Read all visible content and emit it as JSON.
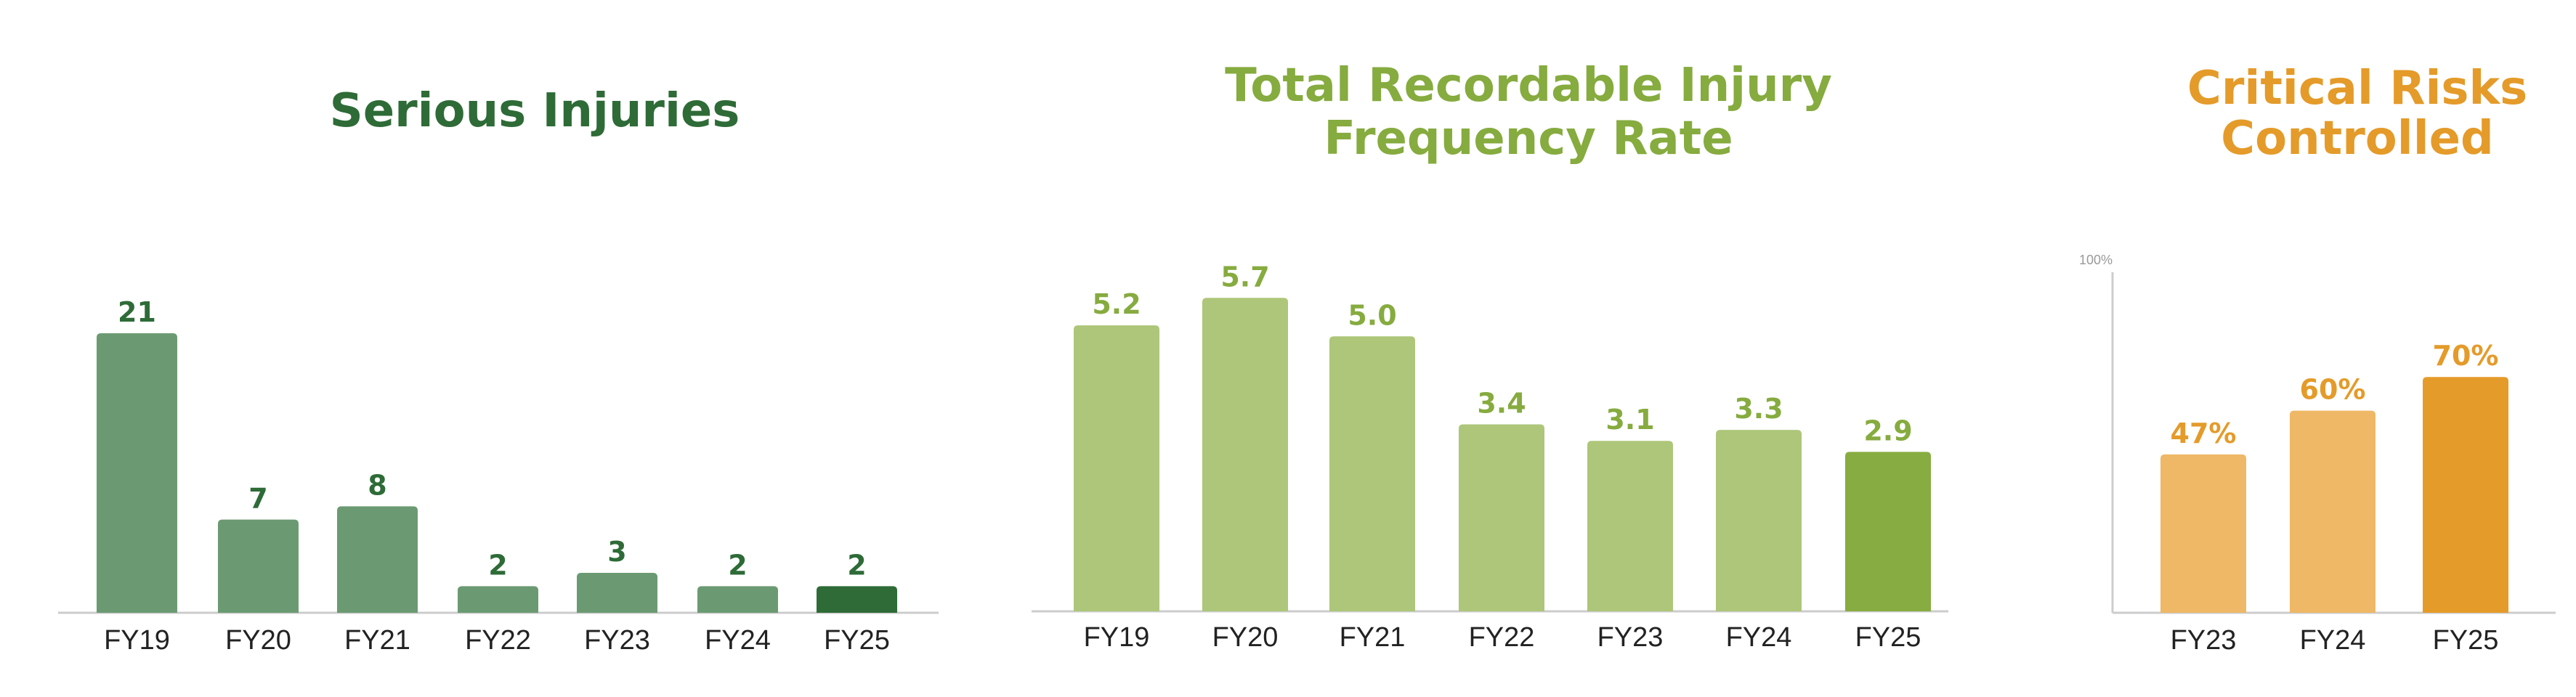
{
  "chart_data": [
    {
      "type": "bar",
      "title": "Serious Injuries",
      "categories": [
        "FY19",
        "FY20",
        "FY21",
        "FY22",
        "FY23",
        "FY24",
        "FY25"
      ],
      "values": [
        21,
        7,
        8,
        2,
        3,
        2,
        2
      ],
      "value_labels": [
        "21",
        "7",
        "8",
        "2",
        "3",
        "2",
        "2"
      ],
      "ylim": [
        0,
        24
      ],
      "grid": false,
      "colors": {
        "title": "#2e6b37",
        "bar": "#6b9a72",
        "highlight": "#2e6b37",
        "label": "#2e6b37"
      }
    },
    {
      "type": "bar",
      "title": "Total Recordable Injury Frequency Rate",
      "categories": [
        "FY19",
        "FY20",
        "FY21",
        "FY22",
        "FY23",
        "FY24",
        "FY25"
      ],
      "values": [
        5.2,
        5.7,
        5.0,
        3.4,
        3.1,
        3.3,
        2.9
      ],
      "value_labels": [
        "5.2",
        "5.7",
        "5.0",
        "3.4",
        "3.1",
        "3.3",
        "2.9"
      ],
      "ylim": [
        0,
        6.1
      ],
      "grid": false,
      "colors": {
        "title": "#86ab3f",
        "bar": "#adc679",
        "highlight": "#87ac41",
        "label": "#86ab3f"
      }
    },
    {
      "type": "bar",
      "title": "Critical Risks Controlled",
      "categories": [
        "FY23",
        "FY24",
        "FY25"
      ],
      "values": [
        47,
        60,
        70
      ],
      "value_labels": [
        "47%",
        "60%",
        "70%"
      ],
      "ylim": [
        0,
        100
      ],
      "y_axis_label": "100%",
      "grid": false,
      "colors": {
        "title": "#e49b2a",
        "bar": "#eeb866",
        "highlight": "#e59b2a",
        "label": "#e49b2a"
      }
    }
  ]
}
